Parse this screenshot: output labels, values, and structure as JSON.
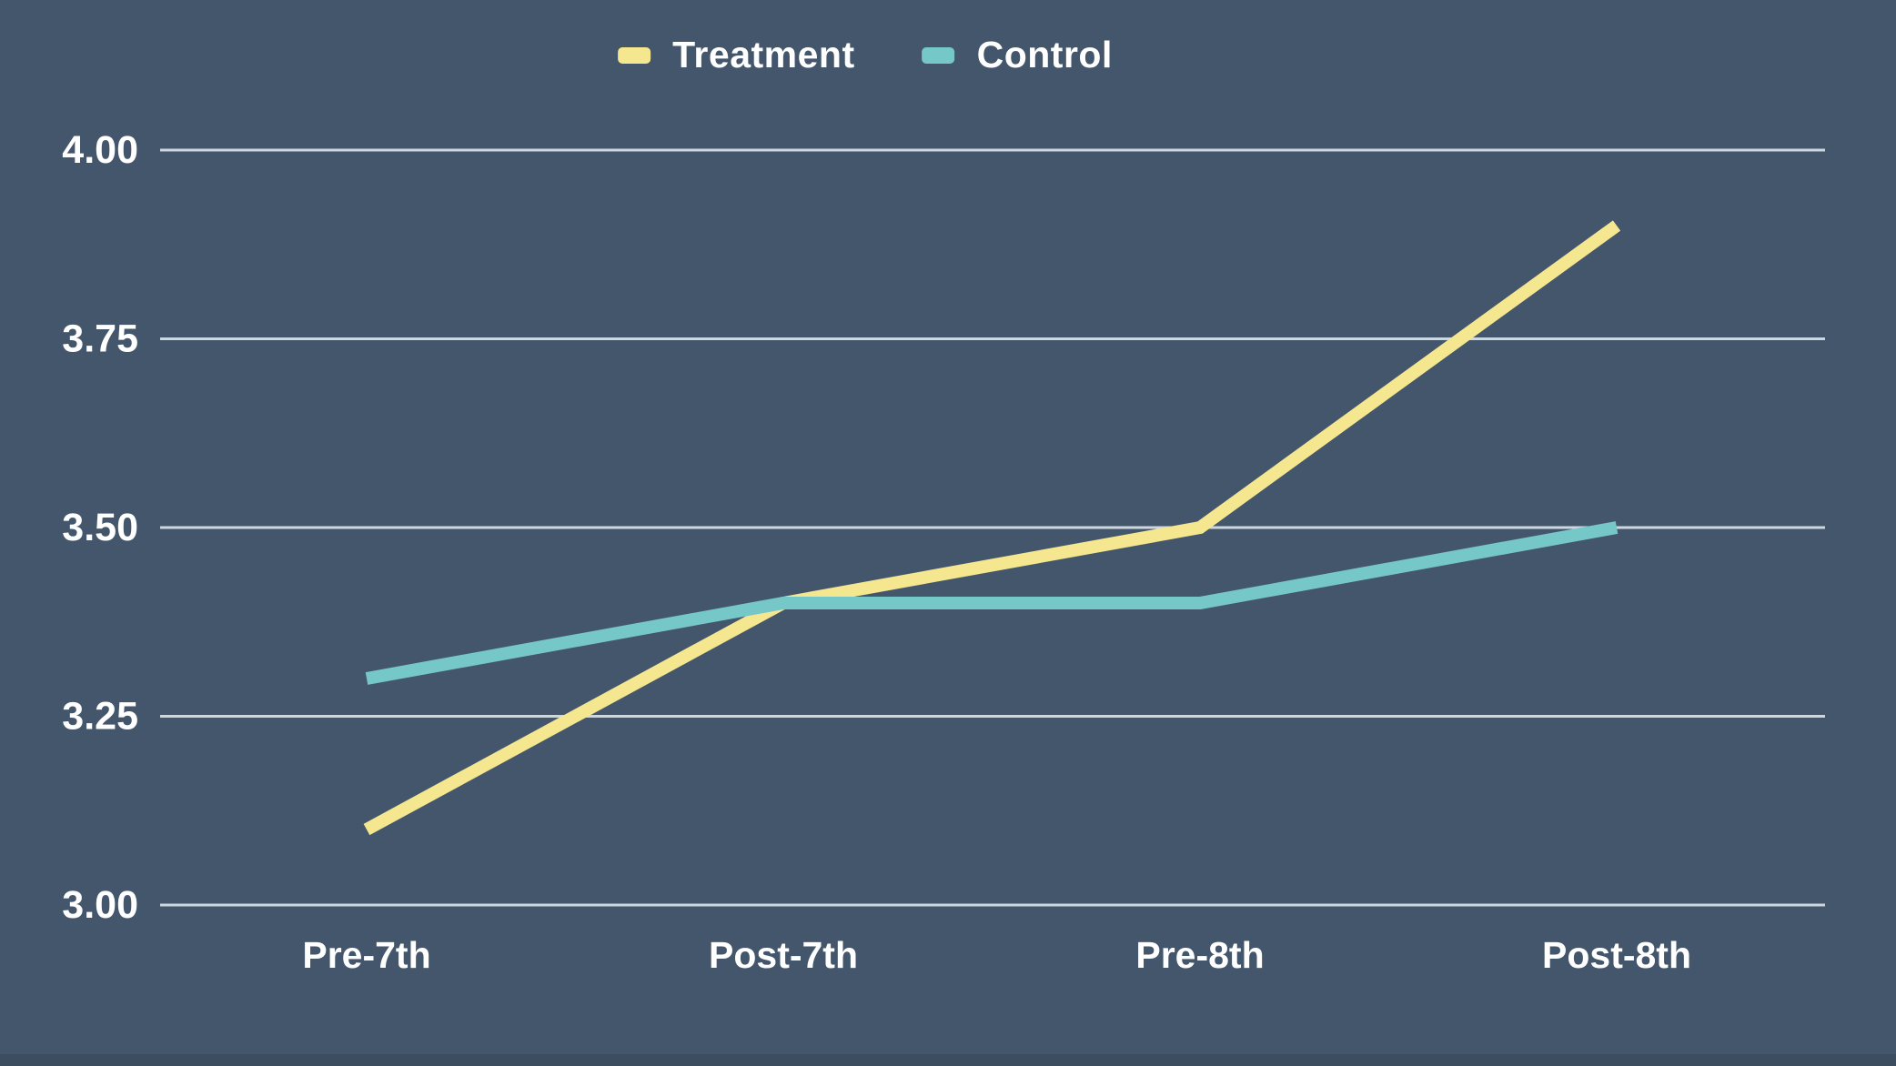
{
  "chart_data": {
    "type": "line",
    "categories": [
      "Pre-7th",
      "Post-7th",
      "Pre-8th",
      "Post-8th"
    ],
    "series": [
      {
        "name": "Treatment",
        "color": "#F5E78F",
        "values": [
          3.1,
          3.4,
          3.5,
          3.9
        ]
      },
      {
        "name": "Control",
        "color": "#76C7C7",
        "values": [
          3.3,
          3.4,
          3.4,
          3.5
        ]
      }
    ],
    "title": "",
    "xlabel": "",
    "ylabel": "",
    "ylim": [
      3.0,
      4.0
    ],
    "yticks": [
      4.0,
      3.75,
      3.5,
      3.25,
      3.0
    ],
    "ytick_labels": [
      "4.00",
      "3.75",
      "3.50",
      "3.25",
      "3.00"
    ],
    "grid": true,
    "legend_position": "top-center"
  },
  "legend": {
    "items": [
      {
        "label": "Treatment",
        "color": "#F5E78F"
      },
      {
        "label": "Control",
        "color": "#76C7C7"
      }
    ]
  },
  "colors": {
    "background": "#44566C",
    "bottom_strip": "#3D4D60",
    "gridline": "#CDD7DE",
    "label_text": "#FFFFFF"
  }
}
